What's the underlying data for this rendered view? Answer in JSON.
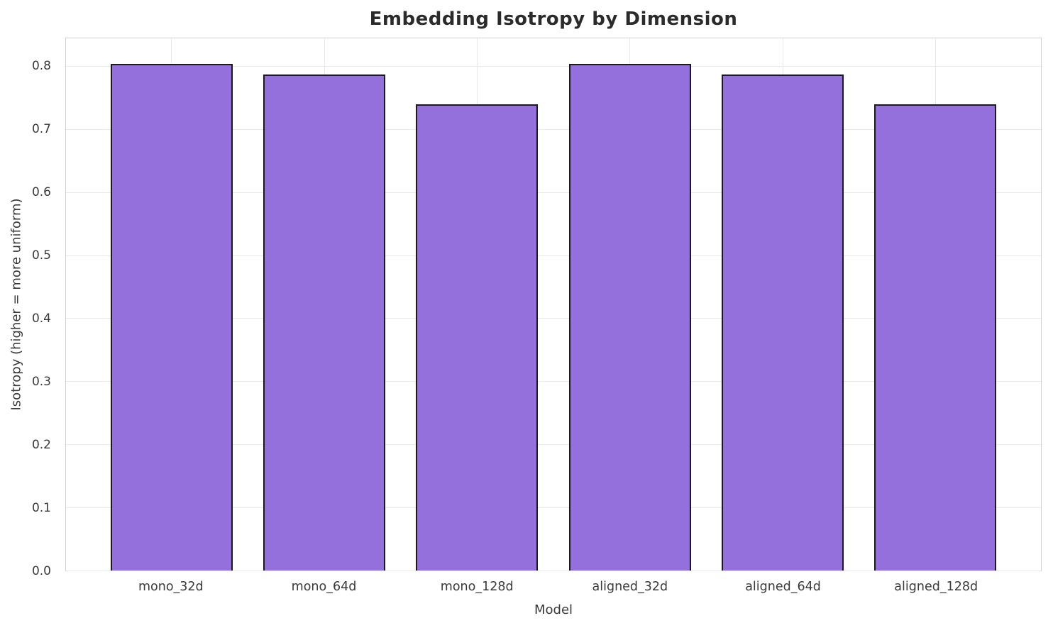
{
  "chart_data": {
    "type": "bar",
    "title": "Embedding Isotropy by Dimension",
    "xlabel": "Model",
    "ylabel": "Isotropy (higher = more uniform)",
    "categories": [
      "mono_32d",
      "mono_64d",
      "mono_128d",
      "aligned_32d",
      "aligned_64d",
      "aligned_128d"
    ],
    "values": [
      0.805,
      0.788,
      0.74,
      0.805,
      0.788,
      0.74
    ],
    "ylim": [
      0,
      0.845
    ],
    "ytick_values": [
      0.0,
      0.1,
      0.2,
      0.3,
      0.4,
      0.5,
      0.6,
      0.7,
      0.8
    ],
    "ytick_labels": [
      "0.0",
      "0.1",
      "0.2",
      "0.3",
      "0.4",
      "0.5",
      "0.6",
      "0.7",
      "0.8"
    ],
    "grid": "horizontal and vertical major gridlines",
    "legend_position": "none",
    "colors": {
      "bar_fill": "#9370DB",
      "bar_edge": "#1a1a1a",
      "gridline": "#e9e9e9",
      "spine": "#d2d2d2",
      "tick_text": "#3a3a3a",
      "title_text": "#2b2b2b"
    }
  }
}
